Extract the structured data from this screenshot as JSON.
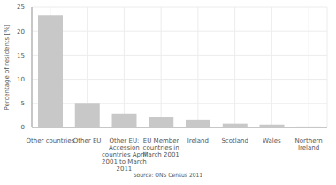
{
  "chart_data": {
    "type": "bar",
    "ylabel": "Percentage of residents [%]",
    "categories": [
      "Other countries",
      "Other EU",
      "Other EU: Accession countries April 2001 to March 2011",
      "EU Member countries in March 2001",
      "Ireland",
      "Scotland",
      "Wales",
      "Northern Ireland"
    ],
    "values": [
      23.3,
      5.1,
      2.8,
      2.2,
      1.5,
      0.8,
      0.6,
      0.2
    ],
    "color": "#c8c8c8",
    "ylim": [
      0,
      25
    ],
    "yticks": [
      0,
      5,
      10,
      15,
      20,
      25
    ],
    "grid": true,
    "source": "Source: ONS Census 2011"
  }
}
